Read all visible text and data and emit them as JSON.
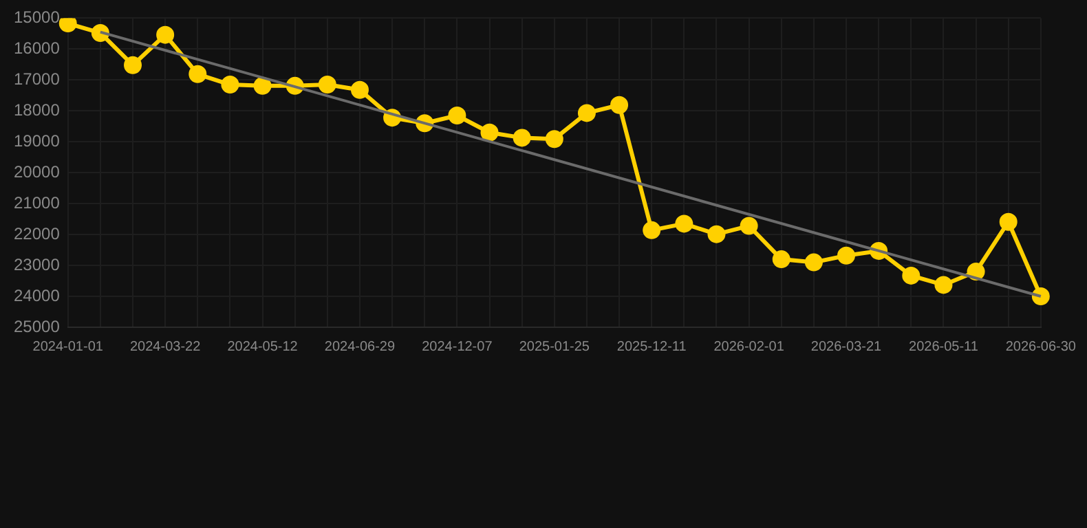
{
  "chart_data": {
    "type": "line",
    "categories": [
      "2024-01-01",
      null,
      null,
      "2024-03-22",
      null,
      null,
      "2024-05-12",
      null,
      null,
      "2024-06-29",
      null,
      null,
      "2024-12-07",
      null,
      null,
      "2025-01-25",
      null,
      null,
      "2025-12-11",
      null,
      null,
      "2026-02-01",
      null,
      null,
      "2026-03-21",
      null,
      null,
      "2026-05-11",
      null,
      null,
      "2026-06-30"
    ],
    "series": [
      {
        "color": "#ffd000",
        "marker": "circle",
        "values": [
          15170,
          15480,
          16520,
          15540,
          16810,
          17150,
          17190,
          17190,
          17150,
          17320,
          18220,
          18400,
          18150,
          18700,
          18870,
          18910,
          18070,
          17810,
          21860,
          21650,
          21990,
          21720,
          22800,
          22900,
          22680,
          22530,
          23330,
          23630,
          23200,
          21590,
          24000
        ]
      },
      {
        "color": "#6b6b6b",
        "marker": "none",
        "values": [
          null,
          15450,
          null,
          null,
          null,
          null,
          null,
          null,
          null,
          null,
          null,
          null,
          null,
          null,
          null,
          null,
          null,
          null,
          null,
          null,
          null,
          null,
          null,
          null,
          null,
          null,
          null,
          null,
          null,
          null,
          24000
        ]
      }
    ],
    "ylim": [
      25000,
      15000
    ],
    "yticks": [
      15000,
      16000,
      17000,
      18000,
      19000,
      20000,
      21000,
      22000,
      23000,
      24000,
      25000
    ],
    "grid": true,
    "legend": false
  }
}
